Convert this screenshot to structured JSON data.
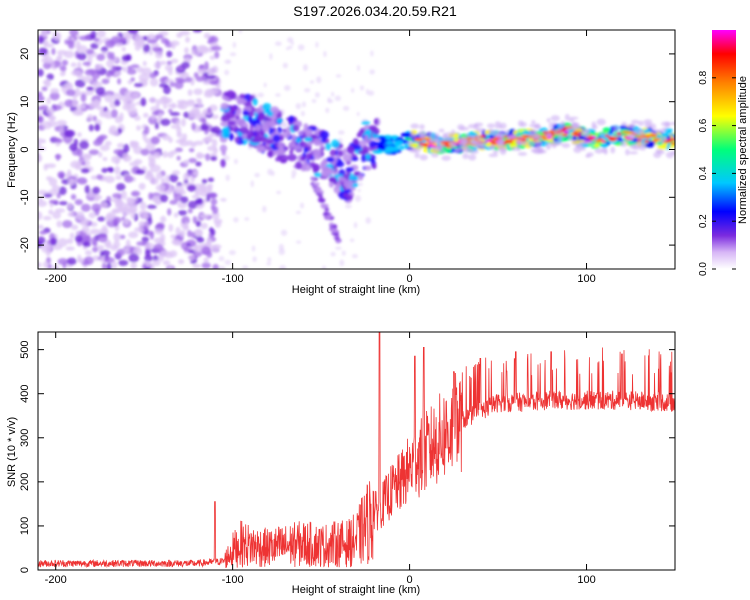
{
  "title": "S197.2026.034.20.59.R21",
  "chart_data": [
    {
      "type": "heatmap",
      "title": "S197.2026.034.20.59.R21",
      "xlabel": "Height of straight line (km)",
      "ylabel": "Frequency (Hz)",
      "xlim": [
        -210,
        150
      ],
      "ylim": [
        -25,
        25
      ],
      "xticks": [
        -200,
        -100,
        0,
        100
      ],
      "yticks": [
        20,
        10,
        0,
        -10,
        -20
      ],
      "colorbar": {
        "label": "Normalized spectral amplitude",
        "range": [
          0,
          1
        ],
        "ticks": [
          "0.0",
          "0.2",
          "0.4",
          "0.6",
          "0.8"
        ],
        "colormap": [
          "#ffffff",
          "#c8a8f0",
          "#7a2be0",
          "#0000ff",
          "#00c8ff",
          "#00ff80",
          "#ffff00",
          "#ff8000",
          "#ff0000",
          "#ff00ff"
        ]
      },
      "description_of_trend": "Broadband noise below -110 km; a descending dispersed band from -105 km (about +8 Hz) to -35 km (about -8 Hz); a narrow strong line near 1-3 Hz from 0 to 150 km",
      "ridge": [
        {
          "x": -105,
          "y": 7
        },
        {
          "x": -90,
          "y": 6
        },
        {
          "x": -75,
          "y": 3
        },
        {
          "x": -60,
          "y": 1
        },
        {
          "x": -45,
          "y": -2
        },
        {
          "x": -35,
          "y": -6
        },
        {
          "x": -25,
          "y": 1
        },
        {
          "x": -10,
          "y": 1
        },
        {
          "x": 0,
          "y": 2
        },
        {
          "x": 20,
          "y": 1
        },
        {
          "x": 40,
          "y": 2
        },
        {
          "x": 60,
          "y": 2
        },
        {
          "x": 80,
          "y": 3
        },
        {
          "x": 90,
          "y": 4
        },
        {
          "x": 100,
          "y": 2
        },
        {
          "x": 120,
          "y": 3
        },
        {
          "x": 150,
          "y": 2
        }
      ]
    },
    {
      "type": "line",
      "xlabel": "Height of straight line (km)",
      "ylabel": "SNR (10 * v/v)",
      "xlim": [
        -210,
        150
      ],
      "ylim": [
        0,
        540
      ],
      "xticks": [
        -200,
        -100,
        0,
        100
      ],
      "yticks": [
        0,
        100,
        200,
        300,
        400,
        500
      ],
      "color": "#ee3333",
      "series": [
        {
          "name": "SNR",
          "x": [
            -210,
            -180,
            -150,
            -120,
            -105,
            -100,
            -95,
            -90,
            -80,
            -70,
            -60,
            -50,
            -40,
            -35,
            -30,
            -25,
            -20,
            -15,
            -10,
            -5,
            0,
            5,
            10,
            15,
            20,
            25,
            30,
            40,
            50,
            60,
            80,
            100,
            120,
            150
          ],
          "y": [
            15,
            15,
            15,
            15,
            20,
            45,
            60,
            55,
            50,
            55,
            60,
            55,
            60,
            60,
            70,
            100,
            130,
            150,
            180,
            200,
            230,
            250,
            270,
            290,
            310,
            325,
            340,
            360,
            380,
            380,
            385,
            385,
            385,
            380
          ],
          "peaks": [
            {
              "x": -110,
              "y": 155
            },
            {
              "x": -17,
              "y": 540
            },
            {
              "x": 3,
              "y": 485
            },
            {
              "x": 8,
              "y": 505
            },
            {
              "x": 25,
              "y": 450
            },
            {
              "x": 40,
              "y": 480
            },
            {
              "x": 60,
              "y": 495
            },
            {
              "x": 80,
              "y": 495
            },
            {
              "x": 120,
              "y": 490
            }
          ]
        }
      ]
    }
  ]
}
